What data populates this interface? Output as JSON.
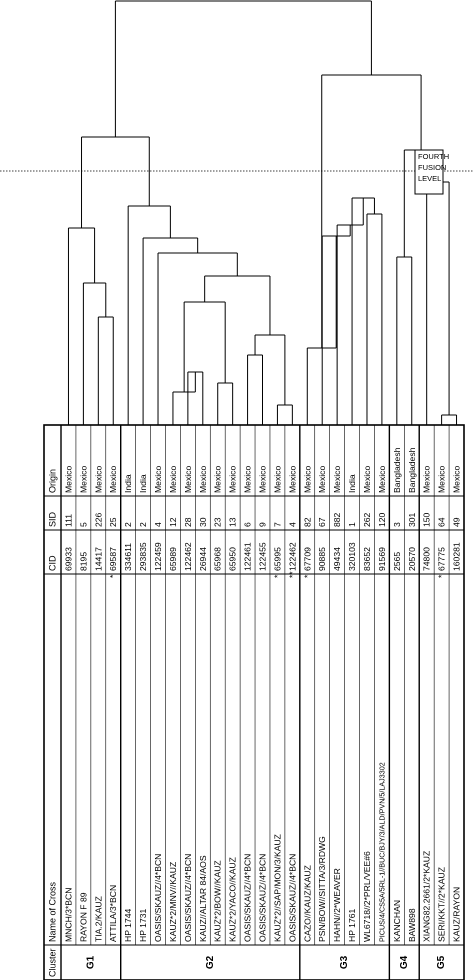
{
  "headers": {
    "cluster": "Cluster",
    "name": "Name of Cross",
    "cid": "CID",
    "sid": "SID",
    "origin": "Origin"
  },
  "fusion_label": [
    "FOURTH",
    "FUSION",
    "LEVEL"
  ],
  "clusters": [
    {
      "label": "G1",
      "rows": [
        0,
        3
      ]
    },
    {
      "label": "G2",
      "rows": [
        4,
        15
      ]
    },
    {
      "label": "G3",
      "rows": [
        16,
        21
      ]
    },
    {
      "label": "G4",
      "rows": [
        22,
        23
      ]
    },
    {
      "label": "G5",
      "rows": [
        24,
        26
      ]
    }
  ],
  "rows": [
    {
      "name": "MNCH/3*BCN",
      "mark": "",
      "cid": "69933",
      "sid": "111",
      "origin": "Mexico"
    },
    {
      "name": "RAYON F 89",
      "mark": "",
      "cid": "8195",
      "sid": "5",
      "origin": "Mexico"
    },
    {
      "name": "TIA.2/KAUZ",
      "mark": "",
      "cid": "14417",
      "sid": "226",
      "origin": "Mexico"
    },
    {
      "name": "ATTILA/3*BCN",
      "mark": "*",
      "cid": "69587",
      "sid": "25",
      "origin": "Mexico"
    },
    {
      "name": "HP 1744",
      "mark": "",
      "cid": "334611",
      "sid": "2",
      "origin": "India"
    },
    {
      "name": "HP 1731",
      "mark": "",
      "cid": "293835",
      "sid": "2",
      "origin": "India"
    },
    {
      "name": "OASIS/SKAUZ//4*BCN",
      "mark": "",
      "cid": "122459",
      "sid": "4",
      "origin": "Mexico"
    },
    {
      "name": "KAUZ*2/MNV//KAUZ",
      "mark": "",
      "cid": "65989",
      "sid": "12",
      "origin": "Mexico"
    },
    {
      "name": "OASIS/SKAUZ//4*BCN",
      "mark": "",
      "cid": "122462",
      "sid": "28",
      "origin": "Mexico"
    },
    {
      "name": "KAUZ//ALTAR 84/AOS",
      "mark": "",
      "cid": "26944",
      "sid": "30",
      "origin": "Mexico"
    },
    {
      "name": "KAUZ*2/BOW//KAUZ",
      "mark": "",
      "cid": "65968",
      "sid": "23",
      "origin": "Mexico"
    },
    {
      "name": "KAUZ*2/YACO//KAUZ",
      "mark": "",
      "cid": "65950",
      "sid": "13",
      "origin": "Mexico"
    },
    {
      "name": "OASIS/SKAUZ//4*BCN",
      "mark": "",
      "cid": "122461",
      "sid": "6",
      "origin": "Mexico"
    },
    {
      "name": "OASIS/SKAUZ//4*BCN",
      "mark": "",
      "cid": "122455",
      "sid": "9",
      "origin": "Mexico"
    },
    {
      "name": "KAUZ*2//SAP/MON/3/KAUZ",
      "mark": "*",
      "cid": "65995",
      "sid": "7",
      "origin": "Mexico"
    },
    {
      "name": "OASIS/SKAUZ//4*BCN",
      "mark": "**",
      "cid": "122462",
      "sid": "4",
      "origin": "Mexico"
    },
    {
      "name": "CAZO//KAUZ/KAUZ",
      "mark": "*",
      "cid": "67709",
      "sid": "82",
      "origin": "Mexico"
    },
    {
      "name": "PSN/BOW//SITTA/3/RDWG",
      "mark": "",
      "cid": "90885",
      "sid": "67",
      "origin": "Mexico"
    },
    {
      "name": "HAHN//2*WEAVER",
      "mark": "",
      "cid": "49434",
      "sid": "882",
      "origin": "Mexico"
    },
    {
      "name": "HP 1761",
      "mark": "",
      "cid": "320103",
      "sid": "1",
      "origin": "India"
    },
    {
      "name": "WL6718//2*PRL/VEE#6",
      "mark": "",
      "cid": "83652",
      "sid": "262",
      "origin": "Mexico"
    },
    {
      "name": "PICUS/4/CS5A/5RL-1//BUC/BJY/3/ALD/PVN/5/LAJ3302",
      "mark": "",
      "cid": "91569",
      "sid": "120",
      "origin": "Mexico"
    },
    {
      "name": "KANCHAN",
      "mark": "",
      "cid": "2565",
      "sid": "3",
      "origin": "Bangladesh"
    },
    {
      "name": "BAW898",
      "mark": "",
      "cid": "20570",
      "sid": "301",
      "origin": "Bangladesh"
    },
    {
      "name": "XIANG82.2661/2*KAUZ",
      "mark": "",
      "cid": "74800",
      "sid": "150",
      "origin": "Mexico"
    },
    {
      "name": "SERI/KKT//2*KAUZ",
      "mark": "*",
      "cid": "67775",
      "sid": "64",
      "origin": "Mexico"
    },
    {
      "name": "KAUZ/RAYON",
      "mark": "",
      "cid": "160281",
      "sid": "49",
      "origin": "Mexico"
    }
  ]
}
